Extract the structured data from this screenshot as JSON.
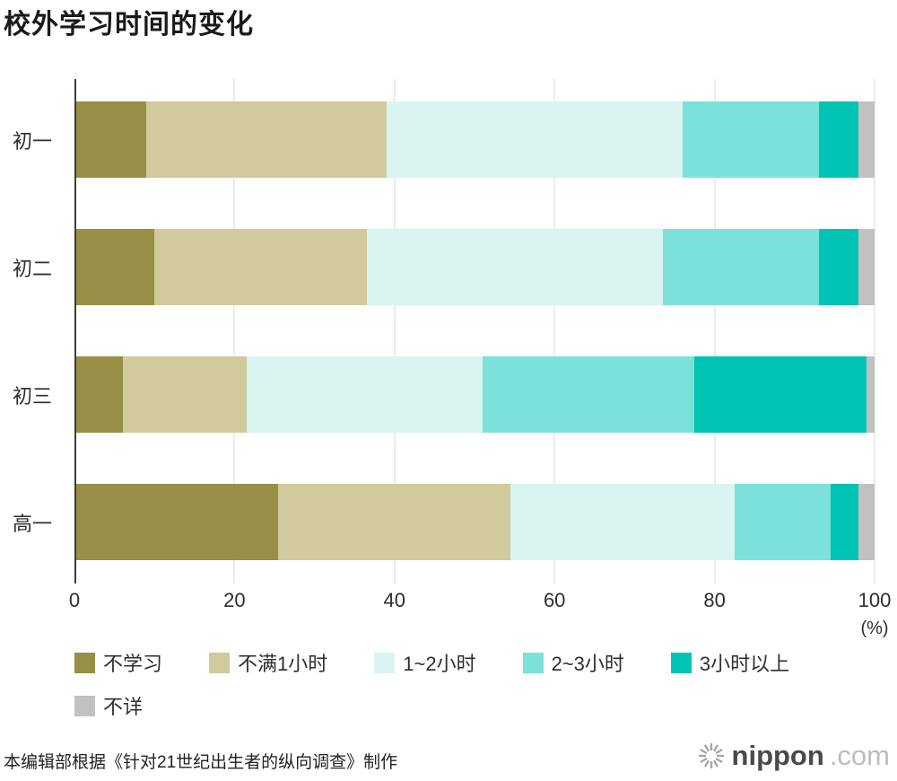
{
  "chart_data": {
    "type": "bar",
    "orientation": "horizontal",
    "stacked": true,
    "title": "校外学习时间的变化",
    "categories": [
      "初一",
      "初二",
      "初三",
      "高一"
    ],
    "series": [
      {
        "name": "不学习",
        "color": "#968F45",
        "values": [
          9,
          10,
          6,
          25.5
        ]
      },
      {
        "name": "不满1小时",
        "color": "#D0CA9C",
        "values": [
          30,
          26.5,
          15.5,
          29
        ]
      },
      {
        "name": "1~2小时",
        "color": "#D9F4F1",
        "values": [
          37,
          37,
          29.5,
          28
        ]
      },
      {
        "name": "2~3小时",
        "color": "#7CE1DA",
        "values": [
          17,
          19.5,
          26.5,
          12
        ]
      },
      {
        "name": "3小时以上",
        "color": "#00C4B3",
        "values": [
          5,
          5,
          21.5,
          3.5
        ]
      },
      {
        "name": "不详",
        "color": "#C1C1C1",
        "values": [
          2,
          2,
          1,
          2
        ]
      }
    ],
    "xlim": [
      0,
      100
    ],
    "x_ticks": [
      0,
      20,
      40,
      60,
      80,
      100
    ],
    "x_unit": "(%)",
    "grid": "vertical",
    "legend_position": "bottom"
  },
  "source": "本编辑部根据《针对21世纪出生者的纵向调查》制作",
  "logo": {
    "name": "nippon",
    "tld": ".com"
  }
}
